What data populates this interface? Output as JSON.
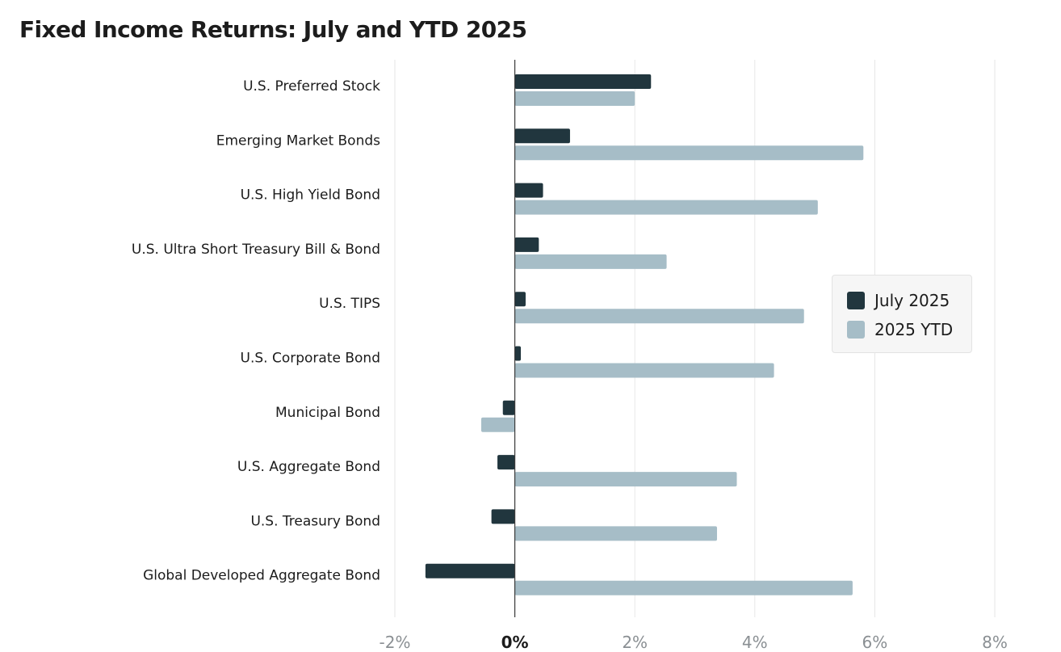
{
  "chart_data": {
    "type": "bar",
    "orientation": "horizontal",
    "title": "Fixed Income Returns: July and YTD 2025",
    "categories": [
      "U.S. Preferred Stock",
      "Emerging Market Bonds",
      "U.S. High Yield Bond",
      "U.S. Ultra Short Treasury Bill & Bond",
      "U.S. TIPS",
      "U.S. Corporate Bond",
      "Municipal Bond",
      "U.S. Aggregate Bond",
      "U.S. Treasury Bond",
      "Global Developed Aggregate Bond"
    ],
    "series": [
      {
        "name": "July 2025",
        "color": "#21363e",
        "values": [
          2.27,
          0.92,
          0.47,
          0.4,
          0.18,
          0.1,
          -0.2,
          -0.29,
          -0.39,
          -1.49
        ]
      },
      {
        "name": "2025 YTD",
        "color": "#a6bdc7",
        "values": [
          2.0,
          5.81,
          5.05,
          2.53,
          4.82,
          4.32,
          -0.56,
          3.7,
          3.37,
          5.63
        ]
      }
    ],
    "xlim": [
      -2,
      8
    ],
    "xticks": [
      -2,
      0,
      2,
      4,
      6,
      8
    ],
    "xtick_labels": [
      "-2%",
      "0%",
      "2%",
      "4%",
      "6%",
      "8%"
    ],
    "grid": true,
    "legend_position": "right",
    "xlabel": "",
    "ylabel": ""
  }
}
